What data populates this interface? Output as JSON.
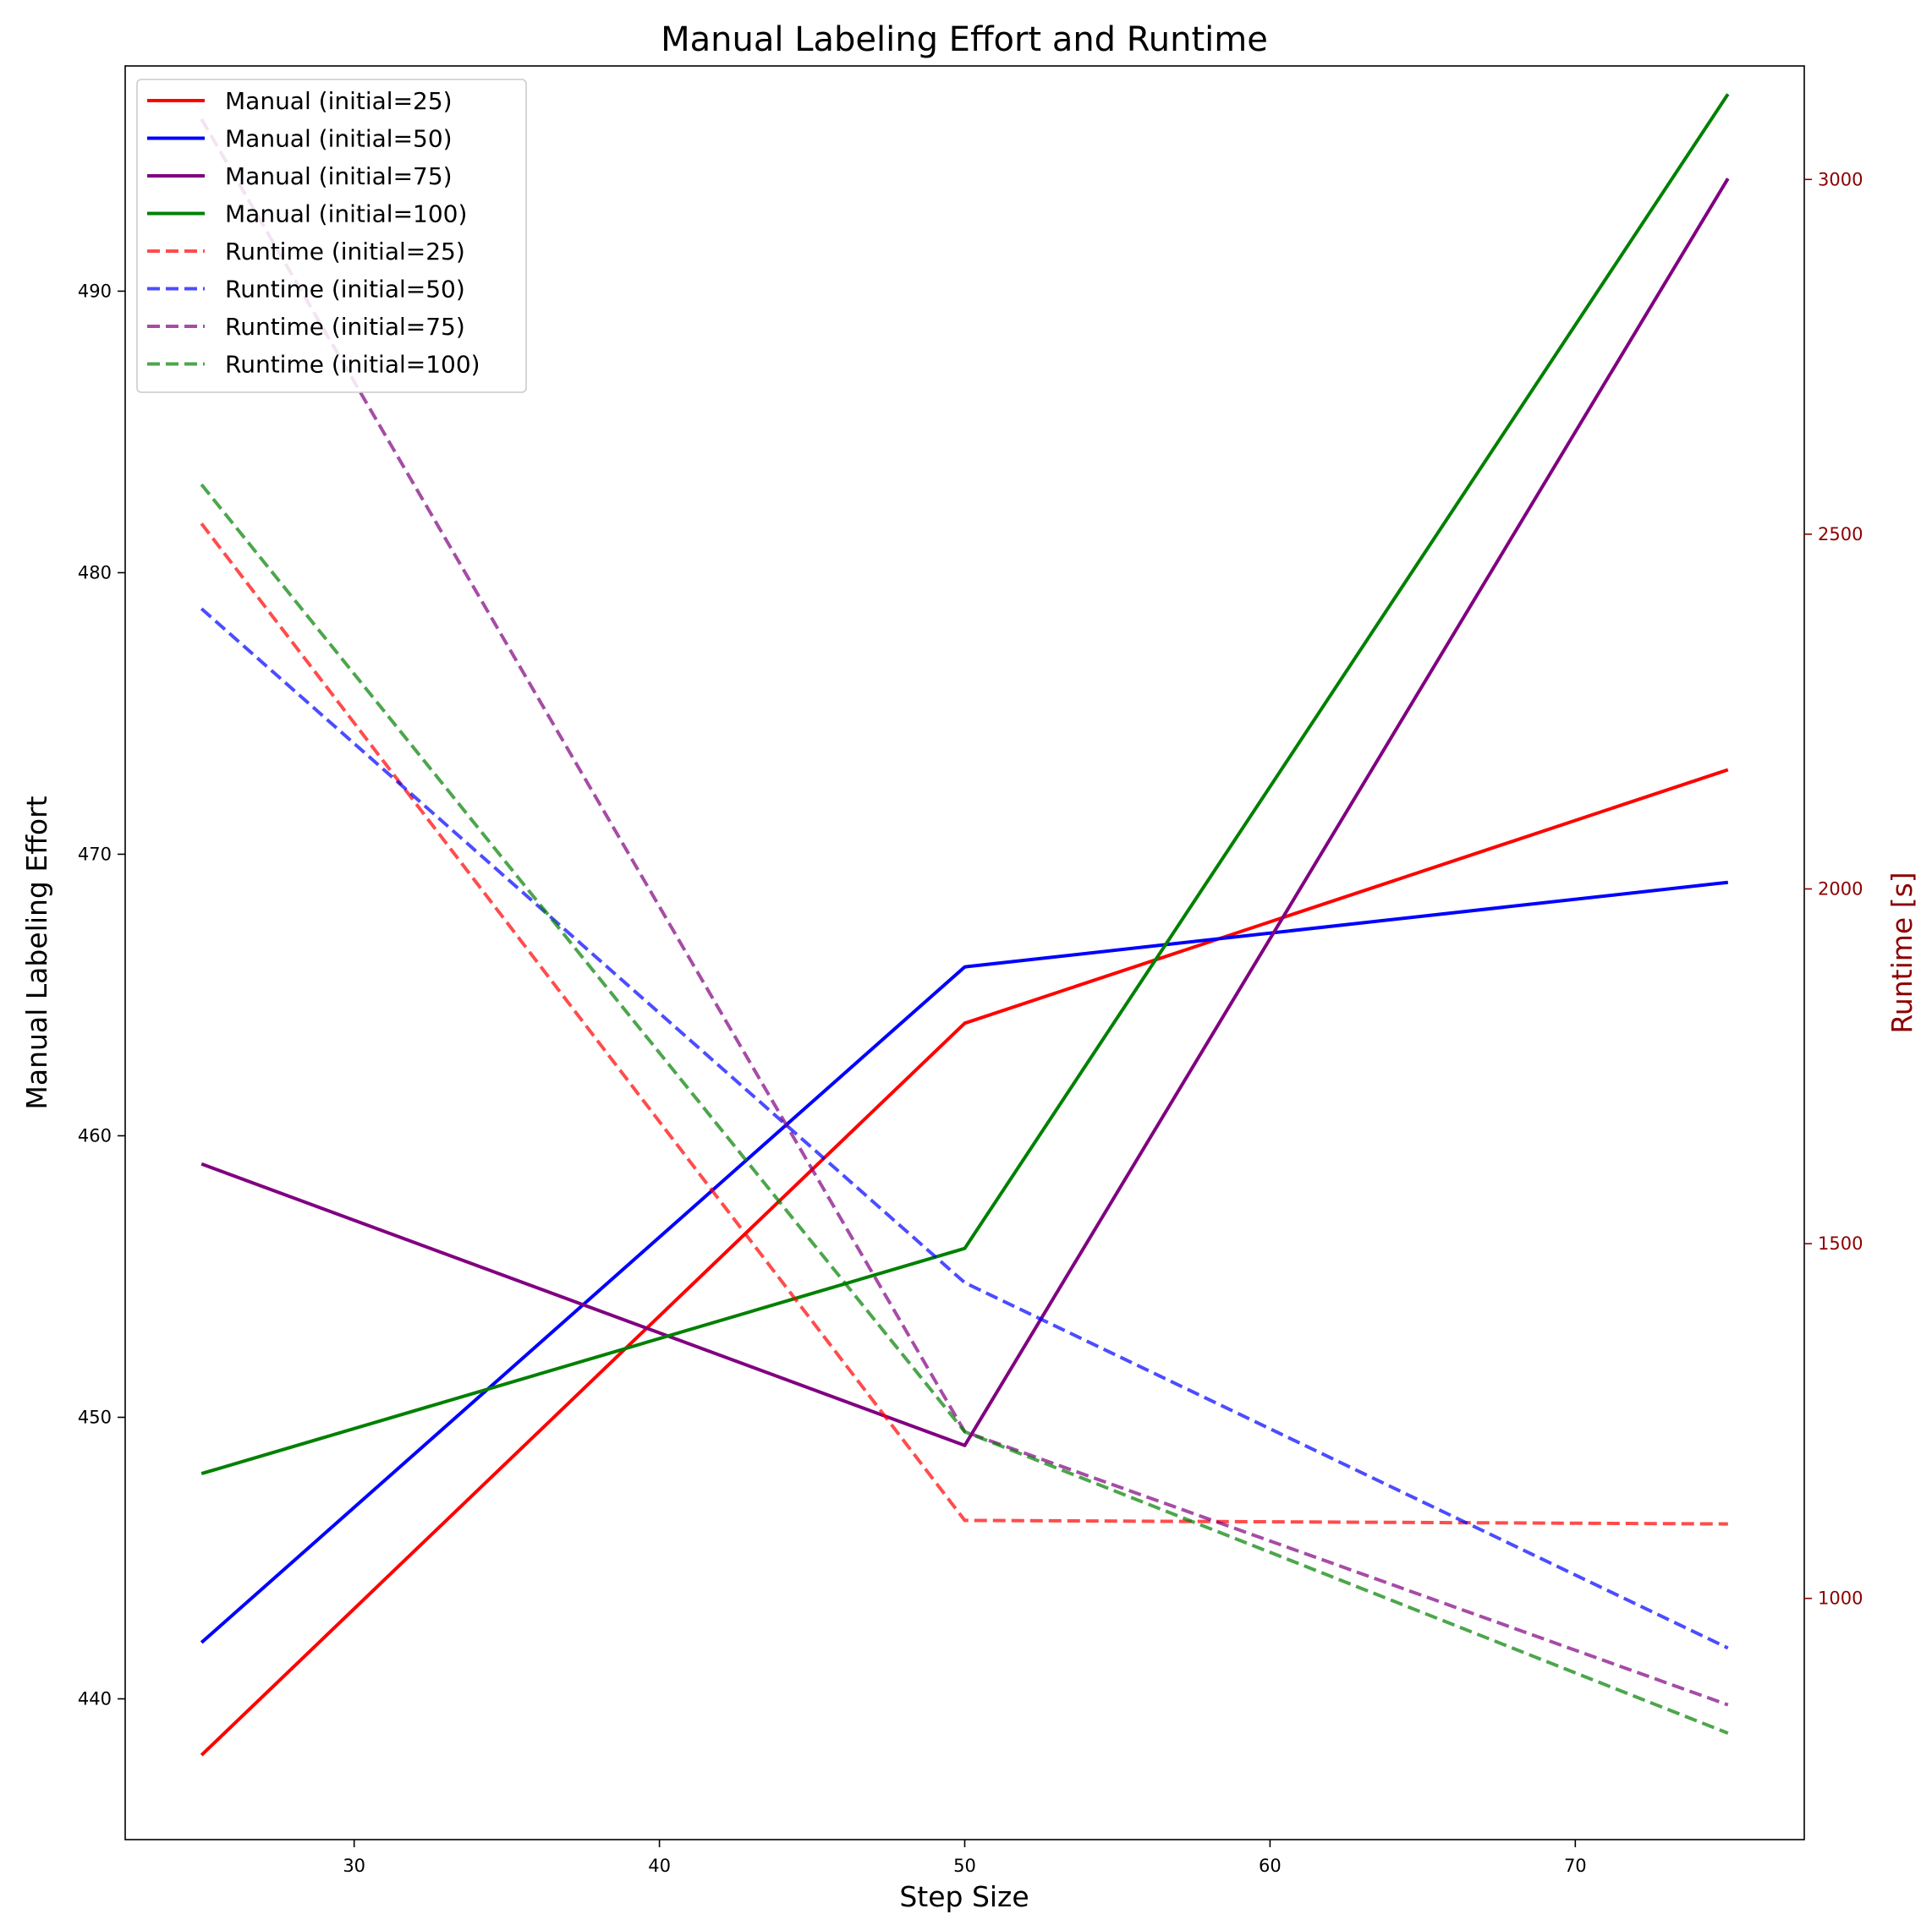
{
  "chart_data": {
    "type": "line",
    "title": "Manual Labeling Effort and Runtime",
    "xlabel": "Step Size",
    "ylabel": "Manual Labeling Effort",
    "ylabel_right": "Runtime [s]",
    "x": [
      25,
      50,
      75
    ],
    "xlim": [
      22.5,
      77.5
    ],
    "ylim": [
      435,
      498
    ],
    "ylim_right": [
      660,
      3160
    ],
    "x_ticks": [
      30,
      40,
      50,
      60,
      70
    ],
    "y_ticks": [
      440,
      450,
      460,
      470,
      480,
      490
    ],
    "y_ticks_right": [
      1000,
      1500,
      2000,
      2500,
      3000
    ],
    "legend_position": "upper-left",
    "grid": false,
    "series": [
      {
        "name": "Manual (initial=25)",
        "axis": "left",
        "style": "solid",
        "color": "#ff0000",
        "values": [
          438,
          464,
          473
        ]
      },
      {
        "name": "Manual (initial=50)",
        "axis": "left",
        "style": "solid",
        "color": "#0000ff",
        "values": [
          442,
          466,
          469
        ]
      },
      {
        "name": "Manual (initial=75)",
        "axis": "left",
        "style": "solid",
        "color": "#800080",
        "values": [
          459,
          449,
          494
        ]
      },
      {
        "name": "Manual (initial=100)",
        "axis": "left",
        "style": "solid",
        "color": "#008000",
        "values": [
          448,
          456,
          497
        ]
      },
      {
        "name": "Runtime (initial=25)",
        "axis": "right",
        "style": "dashed",
        "color": "#ff0000",
        "values": [
          2515,
          1110,
          1105
        ]
      },
      {
        "name": "Runtime (initial=50)",
        "axis": "right",
        "style": "dashed",
        "color": "#0000ff",
        "values": [
          2395,
          1445,
          930
        ]
      },
      {
        "name": "Runtime (initial=75)",
        "axis": "right",
        "style": "dashed",
        "color": "#800080",
        "values": [
          3085,
          1235,
          850
        ]
      },
      {
        "name": "Runtime (initial=100)",
        "axis": "right",
        "style": "dashed",
        "color": "#008000",
        "values": [
          2570,
          1235,
          810
        ]
      }
    ]
  }
}
